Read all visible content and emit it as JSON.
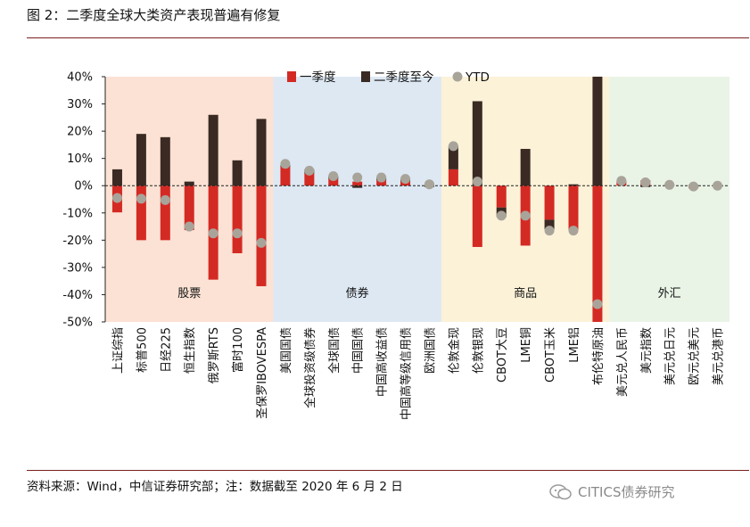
{
  "title": "图 2：二季度全球大类资产表现普遍有修复",
  "source": "资料来源：Wind，中信证券研究部；注：数据截至 2020 年 6 月 2 日",
  "watermark": "CITICS债券研究",
  "colors": {
    "q1": "#d42a24",
    "q2": "#3a2a23",
    "ytd": "#a8a49a",
    "rule": "#7a1f1f"
  },
  "chart_data": {
    "type": "bar",
    "ylim": [
      -50,
      40
    ],
    "yticks": [
      "40%",
      "30%",
      "20%",
      "10%",
      "0%",
      "-10%",
      "-20%",
      "-30%",
      "-40%",
      "-50%"
    ],
    "legend": [
      {
        "key": "q1",
        "label": "一季度"
      },
      {
        "key": "q2",
        "label": "二季度至今"
      },
      {
        "key": "ytd",
        "label": "YTD"
      }
    ],
    "groups": [
      {
        "name": "股票",
        "color": "#fbe2d4",
        "start": 0,
        "end": 6
      },
      {
        "name": "债券",
        "color": "#dde8f3",
        "start": 7,
        "end": 13
      },
      {
        "name": "商品",
        "color": "#fcf2d8",
        "start": 14,
        "end": 20
      },
      {
        "name": "外汇",
        "color": "#e9f4e6",
        "start": 21,
        "end": 25
      }
    ],
    "categories": [
      "上证综指",
      "标普500",
      "日经225",
      "恒生指数",
      "俄罗斯RTS",
      "富时100",
      "圣保罗IBOVESPA",
      "美国国债",
      "全球投资级债券",
      "全球国债",
      "中国国债",
      "中国高收益债",
      "中国高等级信用债",
      "欧洲国债",
      "伦敦金现",
      "伦敦银现",
      "CBOT大豆",
      "LME铜",
      "CBOT玉米",
      "LME铝",
      "布伦特原油",
      "美元兑人民币",
      "美元指数",
      "美元兑日元",
      "欧元兑美元",
      "美元兑港币"
    ],
    "series": [
      {
        "name": "一季度",
        "key": "q1",
        "values": [
          -9.8,
          -20.0,
          -20.0,
          -16.3,
          -34.5,
          -24.8,
          -36.9,
          7.0,
          4.5,
          2.5,
          1.5,
          2.0,
          1.5,
          0.8,
          6.0,
          -22.5,
          -8.0,
          -22.0,
          -12.5,
          -16.5,
          -50.0,
          1.8,
          2.0,
          0.0,
          -1.0,
          0.0
        ]
      },
      {
        "name": "二季度至今",
        "key": "q2",
        "values": [
          6.0,
          19.0,
          17.8,
          1.5,
          26.0,
          9.3,
          24.5,
          0.5,
          1.5,
          1.0,
          -0.8,
          1.0,
          1.0,
          -0.5,
          8.5,
          31.0,
          -3.5,
          13.5,
          -3.5,
          0.5,
          40.0,
          0.0,
          -0.5,
          0.5,
          0.3,
          0.0
        ]
      },
      {
        "name": "YTD",
        "key": "ytd",
        "values": [
          -4.5,
          -4.8,
          -5.3,
          -15.0,
          -17.5,
          -17.5,
          -21.0,
          8.0,
          5.5,
          3.5,
          3.0,
          3.0,
          2.5,
          0.5,
          14.5,
          1.5,
          -11.0,
          -11.0,
          -16.5,
          -16.5,
          -43.5,
          1.8,
          1.2,
          0.3,
          -0.3,
          0.0
        ]
      }
    ]
  }
}
